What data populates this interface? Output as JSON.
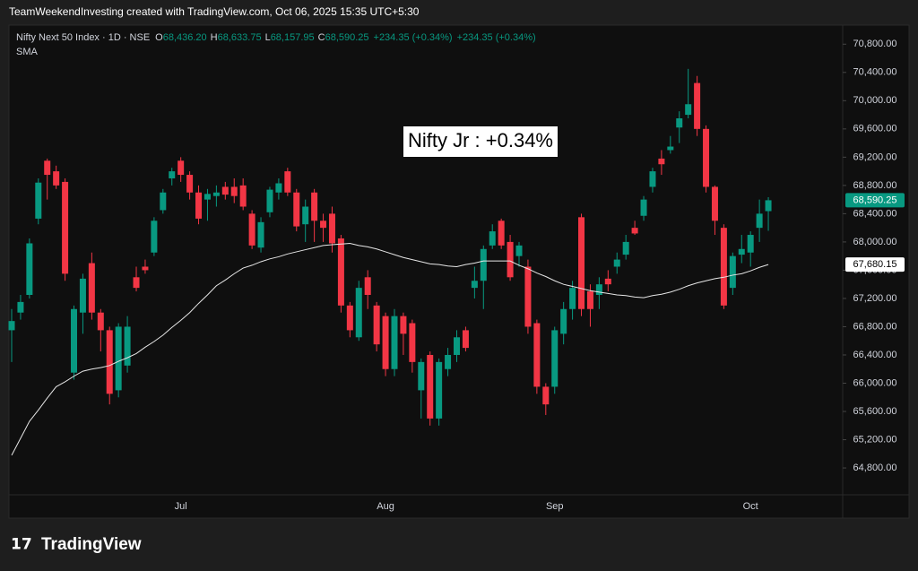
{
  "header": "TeamWeekendInvesting created with TradingView.com, Oct 06, 2025 15:35 UTC+5:30",
  "legend": {
    "symbol": "Nifty Next 50 Index · 1D · NSE",
    "items": [
      {
        "key": "O",
        "text": "68,436.20"
      },
      {
        "key": "H",
        "text": "68,633.75"
      },
      {
        "key": "L",
        "text": "68,157.95"
      },
      {
        "key": "C",
        "text": "68,590.25"
      }
    ],
    "changes": [
      "+234.35 (+0.34%)",
      "+234.35 (+0.34%)"
    ]
  },
  "logo": "TradingView",
  "chart_data": {
    "type": "candlestick",
    "annotation": "Nifty Jr : +0.34%",
    "categories": [
      null,
      null,
      null,
      null,
      null,
      null,
      null,
      null,
      null,
      null,
      null,
      null,
      null,
      null,
      null,
      null,
      null,
      null,
      null,
      "Jul",
      null,
      null,
      null,
      null,
      null,
      null,
      null,
      null,
      null,
      null,
      null,
      null,
      null,
      null,
      null,
      null,
      null,
      null,
      null,
      null,
      null,
      null,
      "Aug",
      null,
      null,
      null,
      null,
      null,
      null,
      null,
      null,
      null,
      null,
      null,
      null,
      null,
      null,
      null,
      null,
      null,
      null,
      "Sep",
      null,
      null,
      null,
      null,
      null,
      null,
      null,
      null,
      null,
      null,
      null,
      null,
      null,
      null,
      null,
      null,
      null,
      null,
      null,
      null,
      null,
      "Oct",
      null,
      null
    ],
    "ohlc": {
      "up_color": "#089981",
      "down_color": "#f23645",
      "open": [
        66750,
        67000,
        67250,
        68330,
        69150,
        69000,
        68850,
        66150,
        67000,
        67700,
        67000,
        66750,
        65900,
        66250,
        67500,
        67650,
        67850,
        68450,
        68900,
        69150,
        68950,
        68700,
        68600,
        68650,
        68780,
        68780,
        68800,
        68400,
        67920,
        68420,
        68700,
        69000,
        68700,
        68250,
        68700,
        68300,
        68400,
        68050,
        67100,
        66650,
        67500,
        67100,
        66950,
        66200,
        66950,
        66850,
        65900,
        66400,
        65500,
        66200,
        66400,
        66750,
        67350,
        67450,
        67950,
        68300,
        68000,
        67800,
        67650,
        66850,
        65950,
        65950,
        66700,
        67050,
        68350,
        67300,
        67250,
        67480,
        67650,
        67820,
        68200,
        68370,
        68780,
        69180,
        69300,
        69620,
        69800,
        70250,
        69600,
        68780,
        68200,
        67350,
        67820,
        67850,
        68200,
        68436.2
      ],
      "high": [
        67050,
        67250,
        68050,
        68900,
        69180,
        69080,
        68900,
        67100,
        67550,
        67850,
        67050,
        66800,
        66850,
        66950,
        67650,
        67750,
        68350,
        68750,
        69050,
        69200,
        69000,
        68800,
        68750,
        68800,
        68850,
        68900,
        68900,
        68450,
        68350,
        68780,
        68900,
        69050,
        68750,
        68600,
        68750,
        68400,
        68500,
        68100,
        67150,
        67450,
        67600,
        67150,
        67000,
        67050,
        67000,
        66900,
        66350,
        66450,
        66350,
        66500,
        66750,
        66800,
        67650,
        67950,
        68250,
        68330,
        68100,
        68000,
        67750,
        66900,
        66000,
        66800,
        67150,
        67450,
        68400,
        67400,
        67500,
        67600,
        67850,
        68100,
        68300,
        68650,
        69050,
        69300,
        69500,
        69850,
        70450,
        70350,
        69650,
        68800,
        68250,
        67850,
        68100,
        68150,
        68600,
        68633.75
      ],
      "low": [
        66300,
        66900,
        67200,
        68250,
        68600,
        68750,
        67450,
        66050,
        66700,
        66900,
        66450,
        65700,
        65800,
        66150,
        67300,
        67550,
        67800,
        68400,
        68800,
        68850,
        68600,
        68250,
        68300,
        68500,
        68600,
        68550,
        68450,
        67900,
        67850,
        68350,
        68600,
        68650,
        68150,
        68000,
        68000,
        68000,
        67850,
        67000,
        66650,
        66600,
        67050,
        66450,
        66100,
        66100,
        66400,
        66150,
        65500,
        65400,
        65400,
        66100,
        66300,
        66450,
        67200,
        67050,
        67900,
        67900,
        67450,
        67650,
        66700,
        65850,
        65550,
        65850,
        66550,
        66900,
        66950,
        66800,
        67050,
        67300,
        67550,
        67750,
        68100,
        68300,
        68700,
        68950,
        69250,
        69400,
        69750,
        69500,
        68700,
        68100,
        67050,
        67250,
        67700,
        67650,
        68000,
        68157.95
      ],
      "close": [
        66880,
        67150,
        67980,
        68840,
        68950,
        68800,
        67550,
        67050,
        67480,
        67000,
        66750,
        65850,
        66800,
        66800,
        67350,
        67600,
        68300,
        68700,
        69000,
        68950,
        68700,
        68330,
        68680,
        68700,
        68670,
        68650,
        68500,
        67950,
        68280,
        68740,
        68830,
        68700,
        68220,
        68500,
        68300,
        68200,
        67980,
        67100,
        66750,
        67350,
        67250,
        66550,
        66200,
        66950,
        66700,
        66300,
        66300,
        65500,
        66300,
        66400,
        66650,
        66500,
        67450,
        67900,
        68150,
        67950,
        67500,
        67950,
        66800,
        65950,
        65700,
        66750,
        67050,
        67350,
        67050,
        67050,
        67400,
        67400,
        67750,
        68000,
        68120,
        68600,
        69000,
        69100,
        69350,
        69750,
        69950,
        69600,
        68780,
        68300,
        67100,
        67800,
        67900,
        68100,
        68400,
        68590.25
      ]
    },
    "sma": {
      "name": "SMA",
      "color": "#e6e6e6",
      "values": [
        64980,
        65220,
        65460,
        65620,
        65790,
        65950,
        66020,
        66100,
        66170,
        66200,
        66220,
        66250,
        66310,
        66360,
        66420,
        66510,
        66590,
        66680,
        66790,
        66890,
        67000,
        67130,
        67250,
        67380,
        67460,
        67550,
        67630,
        67670,
        67720,
        67760,
        67790,
        67830,
        67860,
        67890,
        67920,
        67950,
        67960,
        67970,
        67980,
        67950,
        67930,
        67900,
        67860,
        67820,
        67780,
        67750,
        67720,
        67690,
        67680,
        67660,
        67650,
        67680,
        67700,
        67730,
        67730,
        67730,
        67730,
        67670,
        67620,
        67560,
        67510,
        67450,
        67400,
        67370,
        67340,
        67310,
        67290,
        67270,
        67250,
        67240,
        67220,
        67210,
        67240,
        67260,
        67290,
        67330,
        67380,
        67420,
        67450,
        67480,
        67500,
        67530,
        67550,
        67590,
        67640,
        67680.15
      ]
    },
    "ylim": [
      64090,
      71070
    ],
    "yticks": [
      {
        "value": 64800,
        "label": "64,800.00"
      },
      {
        "value": 65200,
        "label": "65,200.00"
      },
      {
        "value": 65600,
        "label": "65,600.00"
      },
      {
        "value": 66000,
        "label": "66,000.00"
      },
      {
        "value": 66400,
        "label": "66,400.00"
      },
      {
        "value": 66800,
        "label": "66,800.00"
      },
      {
        "value": 67200,
        "label": "67,200.00"
      },
      {
        "value": 67600,
        "label": "67,600.00"
      },
      {
        "value": 68000,
        "label": "68,000.00"
      },
      {
        "value": 68400,
        "label": "68,400.00"
      },
      {
        "value": 68800,
        "label": "68,800.00"
      },
      {
        "value": 69200,
        "label": "69,200.00"
      },
      {
        "value": 69600,
        "label": "69,600.00"
      },
      {
        "value": 70000,
        "label": "70,000.00"
      },
      {
        "value": 70400,
        "label": "70,400.00"
      },
      {
        "value": 70800,
        "label": "70,800.00"
      }
    ],
    "price_labels": [
      {
        "value": 68590.25,
        "label": "68,590.25",
        "color": "#089981",
        "text_color": "#ffffff"
      },
      {
        "value": 67680.15,
        "label": "67,680.15",
        "color": "#ffffff",
        "text_color": "#000000"
      }
    ],
    "grid": false
  }
}
